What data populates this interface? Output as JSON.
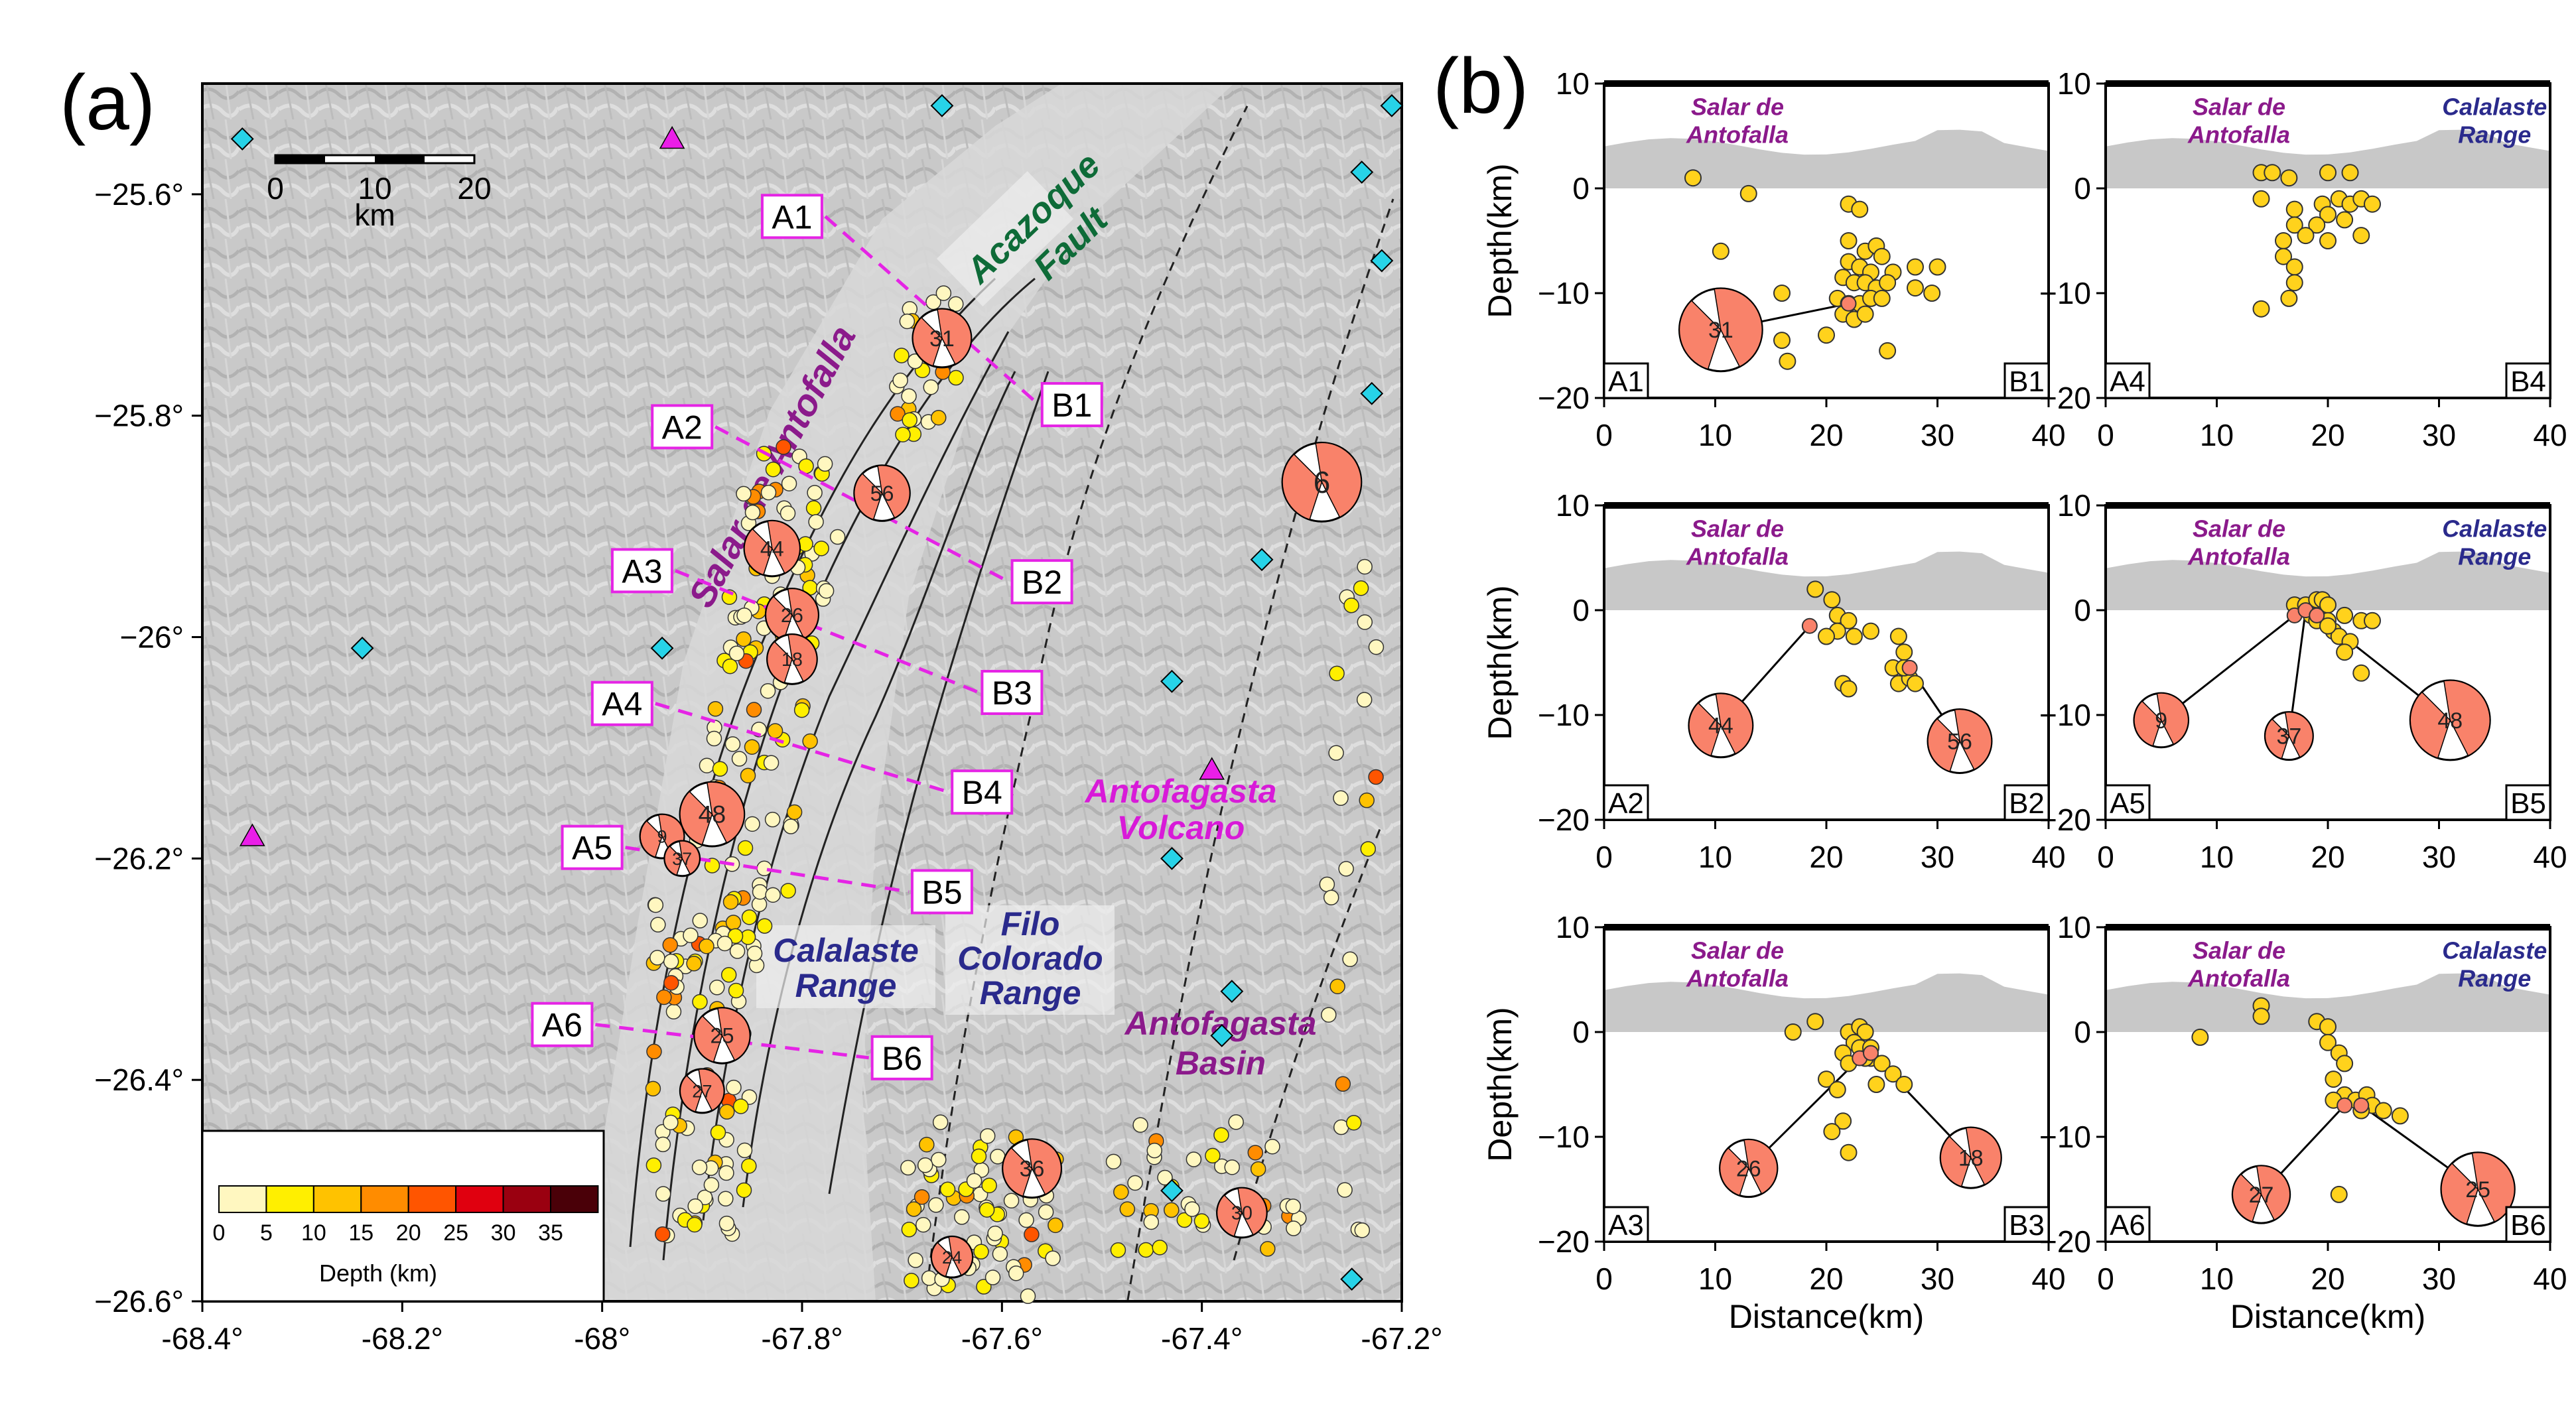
{
  "panel_labels": {
    "a": "(a)",
    "b": "(b)"
  },
  "map": {
    "scalebar": {
      "ticks": [
        "0",
        "10",
        "20"
      ],
      "unit": "km"
    },
    "text_labels": [
      {
        "text": "Salar de Antofalla",
        "color": "#8b1a8b"
      },
      {
        "text": "Acazoque",
        "color": "#0e6b38"
      },
      {
        "text": "Fault",
        "color": "#0e6b38"
      },
      {
        "text": "Calalaste",
        "color": "#2a2a8c"
      },
      {
        "text": "Range",
        "color": "#2a2a8c"
      },
      {
        "text": "Filo",
        "color": "#2a2a8c"
      },
      {
        "text": "Colorado",
        "color": "#2a2a8c"
      },
      {
        "text": "Range",
        "color": "#2a2a8c"
      },
      {
        "text": "Antofagasta",
        "color": "#8b1a8b"
      },
      {
        "text": "Basin",
        "color": "#8b1a8b"
      },
      {
        "text": "Antofagasta",
        "color": "#d81ad8"
      },
      {
        "text": "Volcano",
        "color": "#d81ad8"
      }
    ],
    "depth_legend": {
      "title": "Depth (km)",
      "ticks": [
        "0",
        "5",
        "10",
        "15",
        "20",
        "25",
        "30",
        "35"
      ],
      "colors": [
        "#fff7c0",
        "#ffef00",
        "#ffc200",
        "#ff8c00",
        "#ff5500",
        "#e0000f",
        "#9a0010",
        "#4a0008"
      ]
    },
    "profile_endpoints": [
      {
        "a": "A1",
        "b": "B1"
      },
      {
        "a": "A2",
        "b": "B2"
      },
      {
        "a": "A3",
        "b": "B3"
      },
      {
        "a": "A4",
        "b": "B4"
      },
      {
        "a": "A5",
        "b": "B5"
      },
      {
        "a": "A6",
        "b": "B6"
      }
    ],
    "mechanism_ids": [
      "31",
      "6",
      "56",
      "44",
      "26",
      "18",
      "48",
      "9",
      "37",
      "25",
      "27",
      "36",
      "24",
      "30"
    ]
  },
  "chart_data": [
    {
      "type": "scatter",
      "title": "",
      "xlabel": "",
      "ylabel": "",
      "xlim": [
        -68.4,
        -67.2
      ],
      "ylim": [
        -26.6,
        -25.5
      ],
      "xticks": [
        "-68.4°",
        "-68.2°",
        "-68°",
        "-67.8°",
        "-67.6°",
        "-67.4°",
        "-67.2°"
      ],
      "yticks": [
        "-25.6°",
        "-25.8°",
        "-26°",
        "-26.2°",
        "-26.4°",
        "-26.6°"
      ],
      "stations": [
        [
          -68.36,
          -25.55
        ],
        [
          -68.24,
          -26.01
        ],
        [
          -67.94,
          -26.01
        ],
        [
          -67.66,
          -25.52
        ],
        [
          -67.43,
          -26.04
        ],
        [
          -67.38,
          -26.36
        ],
        [
          -67.43,
          -26.2
        ],
        [
          -67.37,
          -26.32
        ],
        [
          -67.34,
          -25.93
        ],
        [
          -67.23,
          -25.78
        ],
        [
          -67.24,
          -25.58
        ],
        [
          -67.22,
          -25.66
        ],
        [
          -67.21,
          -25.52
        ],
        [
          -67.25,
          -26.58
        ],
        [
          -67.43,
          -26.5
        ]
      ],
      "volcanoes": [
        [
          -67.93,
          -25.55
        ],
        [
          -67.39,
          -26.12
        ],
        [
          -68.35,
          -26.18
        ]
      ],
      "profiles": [
        {
          "a": [
            -67.81,
            -25.62
          ],
          "b": [
            -67.53,
            -25.79
          ]
        },
        {
          "a": [
            -67.92,
            -25.81
          ],
          "b": [
            -67.56,
            -25.95
          ]
        },
        {
          "a": [
            -67.96,
            -25.94
          ],
          "b": [
            -67.59,
            -26.05
          ]
        },
        {
          "a": [
            -67.98,
            -26.06
          ],
          "b": [
            -67.62,
            -26.14
          ]
        },
        {
          "a": [
            -68.01,
            -26.19
          ],
          "b": [
            -67.66,
            -26.23
          ]
        },
        {
          "a": [
            -68.04,
            -26.35
          ],
          "b": [
            -67.7,
            -26.38
          ]
        }
      ],
      "mechanisms": [
        {
          "id": "31",
          "x": -67.66,
          "y": -25.73,
          "size": 1.0
        },
        {
          "id": "6",
          "x": -67.28,
          "y": -25.86,
          "size": 1.35
        },
        {
          "id": "56",
          "x": -67.72,
          "y": -25.87,
          "size": 0.95
        },
        {
          "id": "44",
          "x": -67.83,
          "y": -25.92,
          "size": 0.95
        },
        {
          "id": "26",
          "x": -67.81,
          "y": -25.98,
          "size": 0.9
        },
        {
          "id": "18",
          "x": -67.81,
          "y": -26.02,
          "size": 0.85
        },
        {
          "id": "48",
          "x": -67.89,
          "y": -26.16,
          "size": 1.1
        },
        {
          "id": "9",
          "x": -67.94,
          "y": -26.18,
          "size": 0.75
        },
        {
          "id": "37",
          "x": -67.92,
          "y": -26.2,
          "size": 0.6
        },
        {
          "id": "25",
          "x": -67.88,
          "y": -26.36,
          "size": 0.95
        },
        {
          "id": "27",
          "x": -67.9,
          "y": -26.41,
          "size": 0.75
        },
        {
          "id": "36",
          "x": -67.57,
          "y": -26.48,
          "size": 1.0
        },
        {
          "id": "24",
          "x": -67.65,
          "y": -26.56,
          "size": 0.7
        },
        {
          "id": "30",
          "x": -67.36,
          "y": -26.52,
          "size": 0.85
        }
      ]
    },
    {
      "type": "scatter",
      "profile": "A1-B1",
      "xlabel": "",
      "ylabel": "Depth(km)",
      "xlim": [
        0,
        40
      ],
      "ylim": [
        -20,
        10
      ],
      "points": [
        [
          8,
          1
        ],
        [
          13,
          -0.5
        ],
        [
          22,
          -1.5
        ],
        [
          23,
          -2
        ],
        [
          10.5,
          -6
        ],
        [
          16,
          -10
        ],
        [
          22,
          -5
        ],
        [
          23.5,
          -6
        ],
        [
          24.5,
          -5.5
        ],
        [
          25,
          -6.5
        ],
        [
          22,
          -7
        ],
        [
          23,
          -7.5
        ],
        [
          24,
          -8
        ],
        [
          26,
          -8
        ],
        [
          28,
          -7.5
        ],
        [
          30,
          -7.5
        ],
        [
          21.5,
          -8.5
        ],
        [
          22.5,
          -9
        ],
        [
          23.5,
          -9
        ],
        [
          24.5,
          -9.5
        ],
        [
          25.5,
          -9
        ],
        [
          21,
          -10.5
        ],
        [
          22,
          -11
        ],
        [
          23,
          -11
        ],
        [
          24,
          -10.5
        ],
        [
          25,
          -10.5
        ],
        [
          28,
          -9.5
        ],
        [
          29.5,
          -10
        ],
        [
          21.5,
          -12
        ],
        [
          22.5,
          -12.5
        ],
        [
          23.5,
          -12
        ],
        [
          16,
          -14.5
        ],
        [
          20,
          -14
        ],
        [
          25.5,
          -15.5
        ],
        [
          16.5,
          -16.5
        ]
      ],
      "mechanisms": [
        {
          "id": "31",
          "x": 22,
          "y": -11,
          "bx": 10.5,
          "by": -13.5,
          "size": 1.3
        }
      ]
    },
    {
      "type": "scatter",
      "profile": "A4-B4",
      "xlabel": "",
      "ylabel": "",
      "xlim": [
        0,
        40
      ],
      "ylim": [
        -20,
        10
      ],
      "points": [
        [
          14,
          1.5
        ],
        [
          15,
          1.5
        ],
        [
          16.5,
          1
        ],
        [
          20,
          1.5
        ],
        [
          22,
          1.5
        ],
        [
          14,
          -1
        ],
        [
          17,
          -2
        ],
        [
          19.5,
          -1.5
        ],
        [
          21,
          -1
        ],
        [
          22,
          -1.5
        ],
        [
          23,
          -1
        ],
        [
          24,
          -1.5
        ],
        [
          20,
          -2.5
        ],
        [
          21.5,
          -3
        ],
        [
          19,
          -3.5
        ],
        [
          17,
          -3.5
        ],
        [
          16,
          -5
        ],
        [
          18,
          -4.5
        ],
        [
          20,
          -5
        ],
        [
          23,
          -4.5
        ],
        [
          16,
          -6.5
        ],
        [
          17,
          -7.5
        ],
        [
          17,
          -9
        ],
        [
          16.5,
          -10.5
        ],
        [
          14,
          -11.5
        ]
      ],
      "mechanisms": []
    },
    {
      "type": "scatter",
      "profile": "A2-B2",
      "xlabel": "",
      "ylabel": "Depth(km)",
      "xlim": [
        0,
        40
      ],
      "ylim": [
        -20,
        10
      ],
      "points": [
        [
          19,
          2
        ],
        [
          20.5,
          1
        ],
        [
          21,
          -0.5
        ],
        [
          22,
          -1
        ],
        [
          21,
          -2
        ],
        [
          22.5,
          -2.5
        ],
        [
          24,
          -2
        ],
        [
          20,
          -2.5
        ],
        [
          26.5,
          -2.5
        ],
        [
          27,
          -4
        ],
        [
          26,
          -5.5
        ],
        [
          26.5,
          -7
        ],
        [
          27.5,
          -6.5
        ],
        [
          28,
          -7
        ],
        [
          21.5,
          -7
        ],
        [
          22,
          -7.5
        ],
        [
          27,
          -5.5
        ]
      ],
      "mechanisms": [
        {
          "id": "44",
          "x": 18.5,
          "y": -1.5,
          "bx": 10.5,
          "by": -11,
          "size": 1.0
        },
        {
          "id": "56",
          "x": 27.5,
          "y": -5.5,
          "bx": 32,
          "by": -12.5,
          "size": 1.0
        }
      ]
    },
    {
      "type": "scatter",
      "profile": "A5-B5",
      "xlabel": "",
      "ylabel": "",
      "xlim": [
        0,
        40
      ],
      "ylim": [
        -20,
        10
      ],
      "points": [
        [
          17,
          0.5
        ],
        [
          18,
          0.5
        ],
        [
          19,
          1
        ],
        [
          19.5,
          1
        ],
        [
          20,
          0.5
        ],
        [
          18.5,
          -0.5
        ],
        [
          19,
          -1
        ],
        [
          20,
          -1
        ],
        [
          21.5,
          -0.5
        ],
        [
          20.5,
          -2
        ],
        [
          21,
          -2.5
        ],
        [
          22,
          -3
        ],
        [
          23,
          -1
        ],
        [
          24,
          -1
        ],
        [
          20,
          -1.5
        ],
        [
          21.5,
          -4
        ],
        [
          23,
          -6
        ]
      ],
      "mechanisms": [
        {
          "id": "9",
          "x": 17,
          "y": -0.5,
          "bx": 5,
          "by": -10.5,
          "size": 0.85
        },
        {
          "id": "37",
          "x": 18,
          "y": 0,
          "bx": 16.5,
          "by": -12,
          "size": 0.75
        },
        {
          "id": "48",
          "x": 19,
          "y": -0.5,
          "bx": 31,
          "by": -10.5,
          "size": 1.25
        }
      ]
    },
    {
      "type": "scatter",
      "profile": "A3-B3",
      "xlabel": "Distance(km)",
      "ylabel": "Depth(km)",
      "xlim": [
        0,
        40
      ],
      "ylim": [
        -20,
        10
      ],
      "points": [
        [
          17,
          0
        ],
        [
          19,
          1
        ],
        [
          22,
          0
        ],
        [
          23,
          0.5
        ],
        [
          23.5,
          0
        ],
        [
          22.5,
          -1
        ],
        [
          23,
          -1.5
        ],
        [
          24,
          -1.5
        ],
        [
          21.5,
          -2
        ],
        [
          24,
          -2.5
        ],
        [
          22,
          -3
        ],
        [
          20,
          -4.5
        ],
        [
          21,
          -5.5
        ],
        [
          25,
          -3
        ],
        [
          26,
          -4
        ],
        [
          27,
          -5
        ],
        [
          24.5,
          -5
        ],
        [
          21.5,
          -8.5
        ],
        [
          20.5,
          -9.5
        ],
        [
          22,
          -11.5
        ],
        [
          23.5,
          -2.5
        ]
      ],
      "mechanisms": [
        {
          "id": "26",
          "x": 23,
          "y": -2.5,
          "bx": 13,
          "by": -13,
          "size": 0.9
        },
        {
          "id": "18",
          "x": 24,
          "y": -2,
          "bx": 33,
          "by": -12,
          "size": 0.95
        }
      ]
    },
    {
      "type": "scatter",
      "profile": "A6-B6",
      "xlabel": "Distance(km)",
      "ylabel": "",
      "xlim": [
        0,
        40
      ],
      "ylim": [
        -20,
        10
      ],
      "points": [
        [
          8.5,
          -0.5
        ],
        [
          14,
          2.5
        ],
        [
          14,
          1.5
        ],
        [
          19,
          1
        ],
        [
          20,
          0.5
        ],
        [
          20,
          -1
        ],
        [
          21,
          -2
        ],
        [
          21.5,
          -3
        ],
        [
          20.5,
          -4.5
        ],
        [
          21.5,
          -6
        ],
        [
          22.5,
          -6.5
        ],
        [
          23.5,
          -6
        ],
        [
          24,
          -7
        ],
        [
          25,
          -7.5
        ],
        [
          26.5,
          -8
        ],
        [
          20.5,
          -6.5
        ],
        [
          23,
          -7.5
        ],
        [
          21,
          -15.5
        ]
      ],
      "mechanisms": [
        {
          "id": "27",
          "x": 21.5,
          "y": -7,
          "bx": 14,
          "by": -15.5,
          "size": 0.9
        },
        {
          "id": "25",
          "x": 23,
          "y": -7,
          "bx": 33.5,
          "by": -15,
          "size": 1.15
        }
      ]
    }
  ],
  "profile_panels": [
    {
      "a": "A1",
      "b": "B1",
      "left_label": [
        "Salar de",
        "Antofalla"
      ],
      "right_label": []
    },
    {
      "a": "A4",
      "b": "B4",
      "left_label": [
        "Salar de",
        "Antofalla"
      ],
      "right_label": [
        "Calalaste",
        "Range"
      ]
    },
    {
      "a": "A2",
      "b": "B2",
      "left_label": [
        "Salar de",
        "Antofalla"
      ],
      "right_label": []
    },
    {
      "a": "A5",
      "b": "B5",
      "left_label": [
        "Salar de",
        "Antofalla"
      ],
      "right_label": [
        "Calalaste",
        "Range"
      ]
    },
    {
      "a": "A3",
      "b": "B3",
      "left_label": [
        "Salar de",
        "Antofalla"
      ],
      "right_label": []
    },
    {
      "a": "A6",
      "b": "B6",
      "left_label": [
        "Salar de",
        "Antofalla"
      ],
      "right_label": [
        "Calalaste",
        "Range"
      ]
    }
  ],
  "profile_axes": {
    "xticks": [
      "0",
      "10",
      "20",
      "30",
      "40"
    ],
    "yticks": [
      "10",
      "0",
      "-10",
      "-20"
    ],
    "xlabel": "Distance(km)",
    "ylabel": "Depth(km)"
  },
  "colors": {
    "event_fill": "#ffd21c",
    "mechanism_fill": "#f9826a",
    "profile_line": "#e524e5",
    "station": "#27d3e8",
    "volcano": "#ea1ee8",
    "topography": "#c8c8c8"
  }
}
